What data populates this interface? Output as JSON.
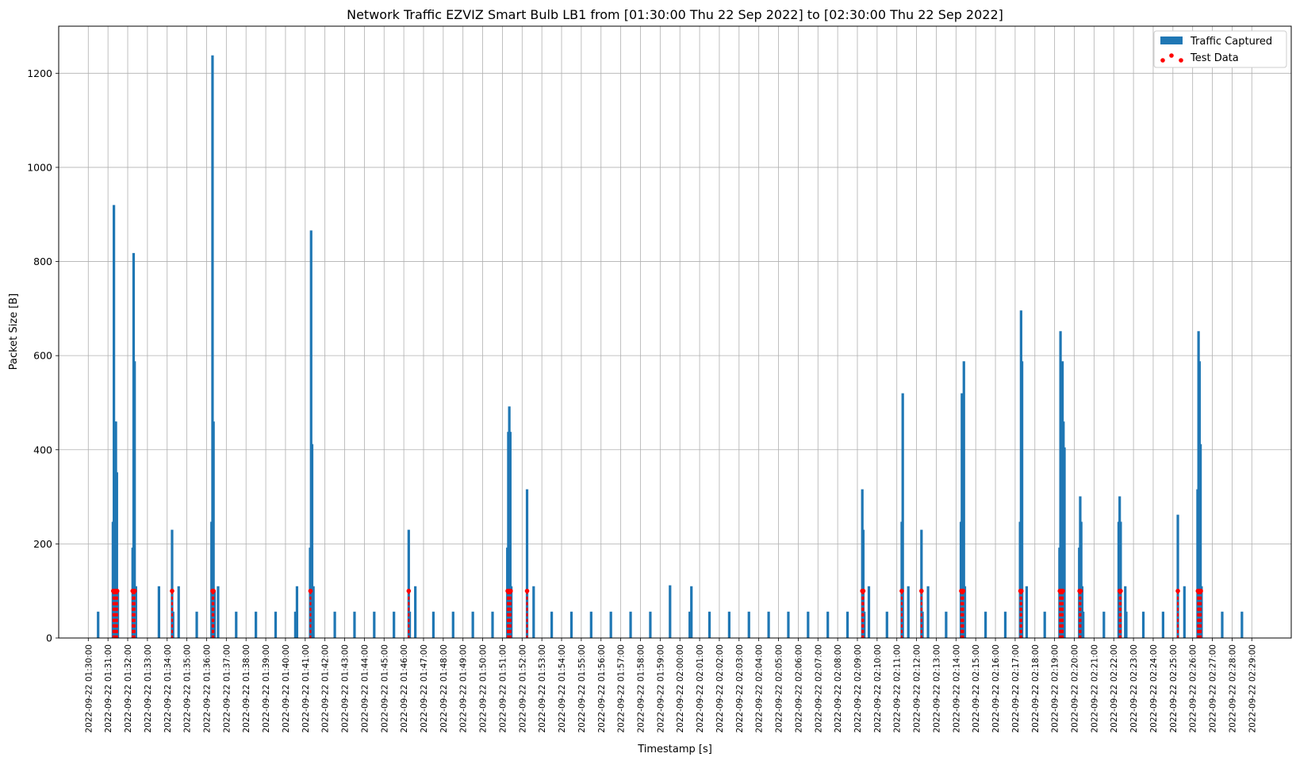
{
  "chart_data": {
    "type": "bar",
    "title": "Network Traffic EZVIZ Smart Bulb LB1 from [01:30:00 Thu 22 Sep 2022] to [02:30:00 Thu 22 Sep 2022]",
    "xlabel": "Timestamp [s]",
    "ylabel": "Packet Size [B]",
    "xlim": [
      "2022-09-22 01:28:30",
      "2022-09-22 02:31:00"
    ],
    "ylim": [
      0,
      1300
    ],
    "yticks": [
      0,
      200,
      400,
      600,
      800,
      1000,
      1200
    ],
    "xticks": [
      "2022-09-22 01:30:00",
      "2022-09-22 01:31:00",
      "2022-09-22 01:32:00",
      "2022-09-22 01:33:00",
      "2022-09-22 01:34:00",
      "2022-09-22 01:35:00",
      "2022-09-22 01:36:00",
      "2022-09-22 01:37:00",
      "2022-09-22 01:38:00",
      "2022-09-22 01:39:00",
      "2022-09-22 01:40:00",
      "2022-09-22 01:41:00",
      "2022-09-22 01:42:00",
      "2022-09-22 01:43:00",
      "2022-09-22 01:44:00",
      "2022-09-22 01:45:00",
      "2022-09-22 01:46:00",
      "2022-09-22 01:47:00",
      "2022-09-22 01:48:00",
      "2022-09-22 01:49:00",
      "2022-09-22 01:50:00",
      "2022-09-22 01:51:00",
      "2022-09-22 01:52:00",
      "2022-09-22 01:53:00",
      "2022-09-22 01:54:00",
      "2022-09-22 01:55:00",
      "2022-09-22 01:56:00",
      "2022-09-22 01:57:00",
      "2022-09-22 01:58:00",
      "2022-09-22 01:59:00",
      "2022-09-22 02:00:00",
      "2022-09-22 02:01:00",
      "2022-09-22 02:02:00",
      "2022-09-22 02:03:00",
      "2022-09-22 02:04:00",
      "2022-09-22 02:05:00",
      "2022-09-22 02:06:00",
      "2022-09-22 02:07:00",
      "2022-09-22 02:08:00",
      "2022-09-22 02:09:00",
      "2022-09-22 02:10:00",
      "2022-09-22 02:11:00",
      "2022-09-22 02:12:00",
      "2022-09-22 02:13:00",
      "2022-09-22 02:14:00",
      "2022-09-22 02:15:00",
      "2022-09-22 02:16:00",
      "2022-09-22 02:17:00",
      "2022-09-22 02:18:00",
      "2022-09-22 02:19:00",
      "2022-09-22 02:20:00",
      "2022-09-22 02:21:00",
      "2022-09-22 02:22:00",
      "2022-09-22 02:23:00",
      "2022-09-22 02:24:00",
      "2022-09-22 02:25:00",
      "2022-09-22 02:26:00",
      "2022-09-22 02:27:00",
      "2022-09-22 02:28:00",
      "2022-09-22 02:29:00"
    ],
    "grid": true,
    "legend_position": "top-right",
    "series": [
      {
        "name": "Traffic Captured",
        "kind": "bar",
        "color": "#1f77b4",
        "points": [
          [
            "2022-09-22 01:30:30",
            56
          ],
          [
            "2022-09-22 01:31:15",
            247
          ],
          [
            "2022-09-22 01:31:18",
            920
          ],
          [
            "2022-09-22 01:31:21",
            460
          ],
          [
            "2022-09-22 01:31:24",
            460
          ],
          [
            "2022-09-22 01:31:27",
            352
          ],
          [
            "2022-09-22 01:31:30",
            100
          ],
          [
            "2022-09-22 01:32:15",
            192
          ],
          [
            "2022-09-22 01:32:18",
            818
          ],
          [
            "2022-09-22 01:32:21",
            588
          ],
          [
            "2022-09-22 01:32:25",
            110
          ],
          [
            "2022-09-22 01:33:35",
            110
          ],
          [
            "2022-09-22 01:34:15",
            230
          ],
          [
            "2022-09-22 01:34:18",
            56
          ],
          [
            "2022-09-22 01:34:35",
            110
          ],
          [
            "2022-09-22 01:35:30",
            56
          ],
          [
            "2022-09-22 01:36:15",
            247
          ],
          [
            "2022-09-22 01:36:18",
            1238
          ],
          [
            "2022-09-22 01:36:21",
            460
          ],
          [
            "2022-09-22 01:36:24",
            100
          ],
          [
            "2022-09-22 01:36:35",
            110
          ],
          [
            "2022-09-22 01:37:30",
            56
          ],
          [
            "2022-09-22 01:38:30",
            56
          ],
          [
            "2022-09-22 01:39:30",
            56
          ],
          [
            "2022-09-22 01:40:30",
            56
          ],
          [
            "2022-09-22 01:40:35",
            110
          ],
          [
            "2022-09-22 01:41:15",
            192
          ],
          [
            "2022-09-22 01:41:18",
            866
          ],
          [
            "2022-09-22 01:41:21",
            412
          ],
          [
            "2022-09-22 01:41:25",
            110
          ],
          [
            "2022-09-22 01:42:30",
            56
          ],
          [
            "2022-09-22 01:43:30",
            56
          ],
          [
            "2022-09-22 01:44:30",
            56
          ],
          [
            "2022-09-22 01:45:30",
            56
          ],
          [
            "2022-09-22 01:46:15",
            230
          ],
          [
            "2022-09-22 01:46:18",
            56
          ],
          [
            "2022-09-22 01:46:35",
            110
          ],
          [
            "2022-09-22 01:47:30",
            56
          ],
          [
            "2022-09-22 01:48:30",
            56
          ],
          [
            "2022-09-22 01:49:30",
            56
          ],
          [
            "2022-09-22 01:50:30",
            56
          ],
          [
            "2022-09-22 01:51:15",
            192
          ],
          [
            "2022-09-22 01:51:18",
            438
          ],
          [
            "2022-09-22 01:51:21",
            492
          ],
          [
            "2022-09-22 01:51:24",
            438
          ],
          [
            "2022-09-22 01:51:27",
            110
          ],
          [
            "2022-09-22 01:52:15",
            316
          ],
          [
            "2022-09-22 01:52:35",
            110
          ],
          [
            "2022-09-22 01:53:30",
            56
          ],
          [
            "2022-09-22 01:54:30",
            56
          ],
          [
            "2022-09-22 01:55:30",
            56
          ],
          [
            "2022-09-22 01:56:30",
            56
          ],
          [
            "2022-09-22 01:57:30",
            56
          ],
          [
            "2022-09-22 01:58:30",
            56
          ],
          [
            "2022-09-22 01:59:30",
            112
          ],
          [
            "2022-09-22 02:00:30",
            56
          ],
          [
            "2022-09-22 02:00:35",
            110
          ],
          [
            "2022-09-22 02:01:30",
            56
          ],
          [
            "2022-09-22 02:02:30",
            56
          ],
          [
            "2022-09-22 02:03:30",
            56
          ],
          [
            "2022-09-22 02:04:30",
            56
          ],
          [
            "2022-09-22 02:05:30",
            56
          ],
          [
            "2022-09-22 02:06:30",
            56
          ],
          [
            "2022-09-22 02:07:30",
            56
          ],
          [
            "2022-09-22 02:08:30",
            56
          ],
          [
            "2022-09-22 02:09:15",
            316
          ],
          [
            "2022-09-22 02:09:18",
            230
          ],
          [
            "2022-09-22 02:09:21",
            56
          ],
          [
            "2022-09-22 02:09:35",
            110
          ],
          [
            "2022-09-22 02:10:30",
            56
          ],
          [
            "2022-09-22 02:11:15",
            247
          ],
          [
            "2022-09-22 02:11:18",
            520
          ],
          [
            "2022-09-22 02:11:35",
            110
          ],
          [
            "2022-09-22 02:12:15",
            230
          ],
          [
            "2022-09-22 02:12:18",
            56
          ],
          [
            "2022-09-22 02:12:35",
            110
          ],
          [
            "2022-09-22 02:13:30",
            56
          ],
          [
            "2022-09-22 02:14:15",
            247
          ],
          [
            "2022-09-22 02:14:18",
            520
          ],
          [
            "2022-09-22 02:14:21",
            412
          ],
          [
            "2022-09-22 02:14:24",
            588
          ],
          [
            "2022-09-22 02:14:27",
            110
          ],
          [
            "2022-09-22 02:15:30",
            56
          ],
          [
            "2022-09-22 02:16:30",
            56
          ],
          [
            "2022-09-22 02:17:15",
            247
          ],
          [
            "2022-09-22 02:17:18",
            696
          ],
          [
            "2022-09-22 02:17:21",
            588
          ],
          [
            "2022-09-22 02:17:35",
            110
          ],
          [
            "2022-09-22 02:18:30",
            56
          ],
          [
            "2022-09-22 02:19:15",
            192
          ],
          [
            "2022-09-22 02:19:18",
            652
          ],
          [
            "2022-09-22 02:19:21",
            360
          ],
          [
            "2022-09-22 02:19:24",
            588
          ],
          [
            "2022-09-22 02:19:27",
            460
          ],
          [
            "2022-09-22 02:19:30",
            405
          ],
          [
            "2022-09-22 02:20:15",
            192
          ],
          [
            "2022-09-22 02:20:18",
            301
          ],
          [
            "2022-09-22 02:20:21",
            247
          ],
          [
            "2022-09-22 02:20:24",
            110
          ],
          [
            "2022-09-22 02:20:27",
            56
          ],
          [
            "2022-09-22 02:21:30",
            56
          ],
          [
            "2022-09-22 02:22:15",
            247
          ],
          [
            "2022-09-22 02:22:18",
            301
          ],
          [
            "2022-09-22 02:22:21",
            247
          ],
          [
            "2022-09-22 02:22:35",
            110
          ],
          [
            "2022-09-22 02:22:38",
            56
          ],
          [
            "2022-09-22 02:23:30",
            56
          ],
          [
            "2022-09-22 02:24:30",
            56
          ],
          [
            "2022-09-22 02:25:15",
            262
          ],
          [
            "2022-09-22 02:25:35",
            110
          ],
          [
            "2022-09-22 02:26:15",
            316
          ],
          [
            "2022-09-22 02:26:18",
            652
          ],
          [
            "2022-09-22 02:26:21",
            588
          ],
          [
            "2022-09-22 02:26:24",
            412
          ],
          [
            "2022-09-22 02:26:27",
            110
          ],
          [
            "2022-09-22 02:27:30",
            56
          ],
          [
            "2022-09-22 02:28:30",
            56
          ]
        ]
      },
      {
        "name": "Test Data",
        "kind": "scatter",
        "color": "#ff0000",
        "value": 100,
        "x": [
          "2022-09-22 01:31:16",
          "2022-09-22 01:31:19",
          "2022-09-22 01:31:22",
          "2022-09-22 01:31:25",
          "2022-09-22 01:31:28",
          "2022-09-22 01:32:15",
          "2022-09-22 01:32:18",
          "2022-09-22 01:32:21",
          "2022-09-22 01:34:15",
          "2022-09-22 01:36:18",
          "2022-09-22 01:36:21",
          "2022-09-22 01:41:16",
          "2022-09-22 01:46:15",
          "2022-09-22 01:51:16",
          "2022-09-22 01:51:19",
          "2022-09-22 01:51:22",
          "2022-09-22 01:51:25",
          "2022-09-22 01:52:15",
          "2022-09-22 02:09:15",
          "2022-09-22 02:09:18",
          "2022-09-22 02:11:15",
          "2022-09-22 02:12:15",
          "2022-09-22 02:14:16",
          "2022-09-22 02:14:19",
          "2022-09-22 02:14:22",
          "2022-09-22 02:17:16",
          "2022-09-22 02:17:19",
          "2022-09-22 02:19:16",
          "2022-09-22 02:19:19",
          "2022-09-22 02:19:22",
          "2022-09-22 02:19:25",
          "2022-09-22 02:20:16",
          "2022-09-22 02:20:19",
          "2022-09-22 02:22:18",
          "2022-09-22 02:22:21",
          "2022-09-22 02:25:15",
          "2022-09-22 02:26:16",
          "2022-09-22 02:26:19",
          "2022-09-22 02:26:22",
          "2022-09-22 02:26:25"
        ]
      }
    ]
  }
}
